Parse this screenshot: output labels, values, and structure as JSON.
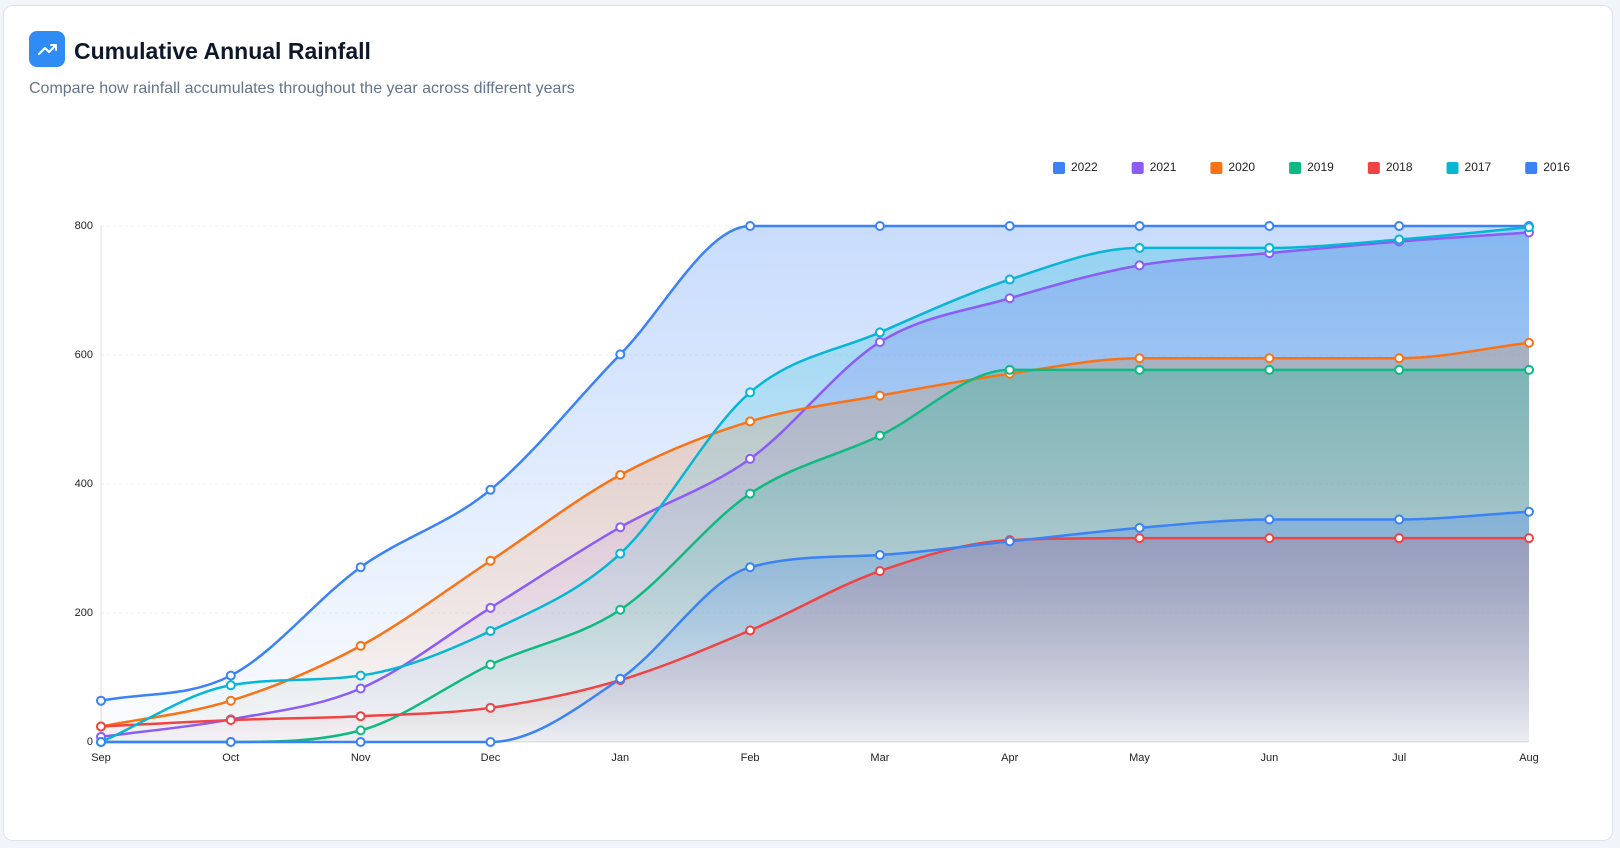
{
  "title": "Cumulative Annual Rainfall",
  "subtitle": "Compare how rainfall accumulates throughout the year across different years",
  "chart_data": {
    "type": "area",
    "categories": [
      "Sep",
      "Oct",
      "Nov",
      "Dec",
      "Jan",
      "Feb",
      "Mar",
      "Apr",
      "May",
      "Jun",
      "Jul",
      "Aug"
    ],
    "ylim": [
      0,
      800
    ],
    "yticks": [
      0,
      200,
      400,
      600,
      800
    ],
    "grid": true,
    "legend": "top-right",
    "series": [
      {
        "name": "2022",
        "color": "#3b82f6",
        "values": [
          64,
          103,
          271,
          391,
          601,
          800,
          800,
          800,
          800,
          800,
          800,
          800
        ]
      },
      {
        "name": "2021",
        "color": "#8b5cf6",
        "values": [
          8,
          35,
          83,
          208,
          333,
          439,
          620,
          688,
          739,
          758,
          776,
          790
        ]
      },
      {
        "name": "2020",
        "color": "#f97316",
        "values": [
          24,
          64,
          149,
          281,
          414,
          497,
          537,
          571,
          595,
          595,
          595,
          619
        ]
      },
      {
        "name": "2019",
        "color": "#10b981",
        "values": [
          0,
          0,
          18,
          120,
          205,
          385,
          475,
          577,
          577,
          577,
          577,
          577
        ]
      },
      {
        "name": "2018",
        "color": "#ef4444",
        "values": [
          24,
          34,
          40,
          53,
          96,
          173,
          265,
          313,
          316,
          316,
          316,
          316
        ]
      },
      {
        "name": "2017",
        "color": "#06b6d4",
        "values": [
          0,
          88,
          103,
          172,
          292,
          542,
          635,
          717,
          766,
          766,
          779,
          798
        ]
      },
      {
        "name": "2016",
        "color": "#3b82f6",
        "values": [
          0,
          0,
          0,
          0,
          98,
          271,
          290,
          311,
          332,
          345,
          345,
          357
        ]
      }
    ]
  }
}
